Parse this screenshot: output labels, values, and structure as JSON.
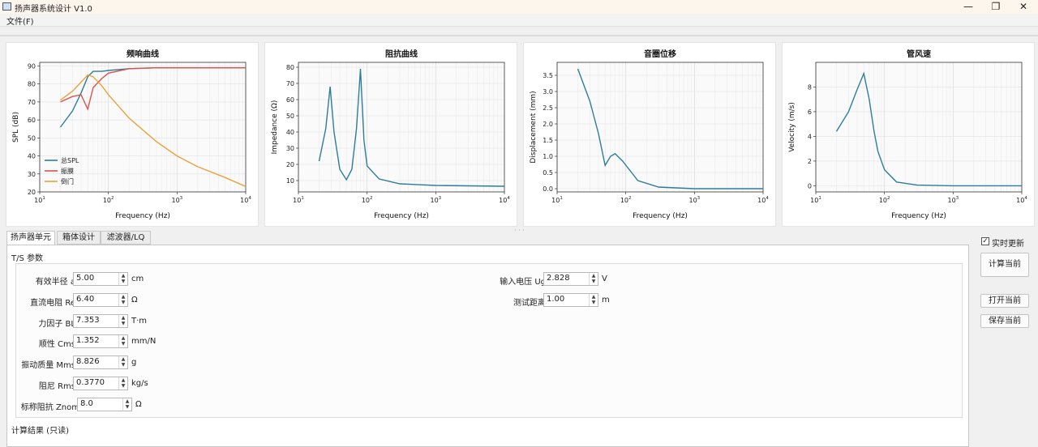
{
  "window": {
    "title": "扬声器系统设计 V1.0",
    "minimize": "—",
    "maximize": "❐",
    "close": "✕"
  },
  "menu": {
    "file": "文件(F)"
  },
  "colors": {
    "spl": "#2e7d9a",
    "woofer": "#d9534f",
    "port": "#e8a33d",
    "curve": "#2e7d9a"
  },
  "plots": {
    "spl": {
      "title": "频响曲线",
      "xlabel": "Frequency (Hz)",
      "ylabel": "SPL (dB)",
      "yticks": [
        "90",
        "80",
        "70",
        "60",
        "50",
        "40",
        "30",
        "20"
      ],
      "legend": [
        "总SPL",
        "振膜",
        "倒门"
      ]
    },
    "impedance": {
      "title": "阻抗曲线",
      "xlabel": "Frequency (Hz)",
      "ylabel": "Impedance (Ω)",
      "yticks": [
        "80",
        "70",
        "60",
        "50",
        "40",
        "30",
        "20",
        "10"
      ]
    },
    "displacement": {
      "title": "音圈位移",
      "xlabel": "Frequency (Hz)",
      "ylabel": "Displacement (mm)",
      "yticks": [
        "3.5",
        "3.0",
        "2.5",
        "2.0",
        "1.5",
        "1.0",
        "0.5",
        "0.0"
      ]
    },
    "velocity": {
      "title": "管风速",
      "xlabel": "Frequency (Hz)",
      "ylabel": "Velocity (m/s)",
      "yticks": [
        "8",
        "6",
        "4",
        "2",
        "0"
      ]
    },
    "xticks": [
      "10",
      "2",
      "3",
      "4"
    ]
  },
  "chart_data": [
    {
      "type": "line",
      "title": "频响曲线",
      "xlabel": "Frequency (Hz)",
      "ylabel": "SPL (dB)",
      "xscale": "log",
      "xlim": [
        10,
        10000
      ],
      "ylim": [
        20,
        92
      ],
      "grid": true,
      "legend_position": "lower-left",
      "x": [
        20,
        30,
        40,
        50,
        60,
        80,
        100,
        200,
        500,
        1000,
        2000,
        5000,
        10000
      ],
      "series": [
        {
          "name": "总SPL",
          "values": [
            56,
            65,
            75,
            84,
            87,
            87,
            87.5,
            88.5,
            89,
            89,
            89,
            89,
            89
          ]
        },
        {
          "name": "振膜",
          "values": [
            70,
            73,
            74,
            66,
            78,
            83,
            86,
            88.5,
            89,
            89,
            89,
            89,
            89
          ]
        },
        {
          "name": "倒门",
          "values": [
            71,
            76,
            81,
            85,
            84,
            79,
            74,
            61,
            48,
            40,
            34,
            28,
            23
          ]
        }
      ]
    },
    {
      "type": "line",
      "title": "阻抗曲线",
      "xlabel": "Frequency (Hz)",
      "ylabel": "Impedance (Ω)",
      "xscale": "log",
      "xlim": [
        10,
        10000
      ],
      "ylim": [
        3,
        83
      ],
      "grid": true,
      "x": [
        20,
        25,
        29,
        33,
        40,
        50,
        60,
        70,
        80,
        90,
        100,
        150,
        300,
        1000,
        10000
      ],
      "values": [
        22,
        42,
        68,
        40,
        17,
        10.5,
        17,
        42,
        79,
        35,
        19,
        11,
        8,
        7,
        6.5
      ]
    },
    {
      "type": "line",
      "title": "音圈位移",
      "xlabel": "Frequency (Hz)",
      "ylabel": "Displacement (mm)",
      "xscale": "log",
      "xlim": [
        10,
        10000
      ],
      "ylim": [
        -0.1,
        3.9
      ],
      "grid": true,
      "x": [
        20,
        30,
        40,
        50,
        60,
        70,
        90,
        150,
        300,
        1000,
        10000
      ],
      "values": [
        3.7,
        2.7,
        1.7,
        0.72,
        1.0,
        1.08,
        0.85,
        0.25,
        0.05,
        0.0,
        0.0
      ]
    },
    {
      "type": "line",
      "title": "管风速",
      "xlabel": "Frequency (Hz)",
      "ylabel": "Velocity (m/s)",
      "xscale": "log",
      "xlim": [
        10,
        10000
      ],
      "ylim": [
        -0.5,
        10
      ],
      "grid": true,
      "x": [
        20,
        30,
        40,
        50,
        60,
        70,
        80,
        100,
        150,
        300,
        1000,
        10000
      ],
      "values": [
        4.4,
        6.0,
        7.8,
        9.1,
        7.0,
        4.5,
        2.8,
        1.3,
        0.3,
        0.05,
        0.0,
        0.0
      ]
    }
  ],
  "tabs": [
    "扬声器单元",
    "箱体设计",
    "滤波器/LQ"
  ],
  "ts": {
    "title": "T/S 参数",
    "fields": [
      {
        "label": "有效半径 a",
        "value": "5.00",
        "unit": "cm"
      },
      {
        "label": "直流电阻 Re",
        "value": "6.40",
        "unit": "Ω"
      },
      {
        "label": "力因子 BL",
        "value": "7.353",
        "unit": "T·m"
      },
      {
        "label": "顺性 Cms",
        "value": "1.352",
        "unit": "mm/N"
      },
      {
        "label": "振动质量 Mms",
        "value": "8.826",
        "unit": "g"
      },
      {
        "label": "阻尼 Rms",
        "value": "0.3770",
        "unit": "kg/s"
      },
      {
        "label": "标称阻抗 Znom",
        "value": "8.0",
        "unit": "Ω"
      }
    ],
    "right_fields": [
      {
        "label": "输入电压 Ug",
        "value": "2.828",
        "unit": "V"
      },
      {
        "label": "测试距离",
        "value": "1.00",
        "unit": "m"
      }
    ]
  },
  "results": {
    "title": "计算结果 (只读)"
  },
  "side": {
    "live_label": "实时更新",
    "live_checked": "✓",
    "calc": "计算当前",
    "open": "打开当前",
    "save": "保存当前"
  }
}
